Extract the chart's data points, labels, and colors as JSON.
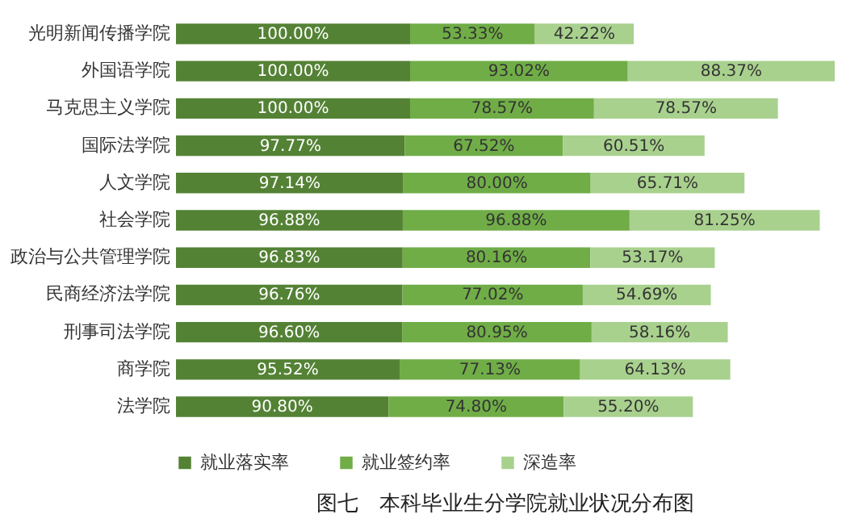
{
  "chart_data": {
    "type": "bar",
    "orientation": "horizontal",
    "stacked": true,
    "title": "图七　本科毕业生分学院就业状况分布图",
    "legend": "bottom",
    "tick_labels": "y",
    "categories": [
      "光明新闻传播学院",
      "外国语学院",
      "马克思主义学院",
      "国际法学院",
      "人文学院",
      "社会学院",
      "政治与公共管理学院",
      "民商经济法学院",
      "刑事司法学院",
      "商学院",
      "法学院"
    ],
    "series": [
      {
        "name": "就业落实率",
        "color": "#548235",
        "values": [
          100.0,
          100.0,
          100.0,
          97.77,
          97.14,
          96.88,
          96.83,
          96.76,
          96.6,
          95.52,
          90.8
        ],
        "value_labels": [
          "100.00%",
          "100.00%",
          "100.00%",
          "97.77%",
          "97.14%",
          "96.88%",
          "96.83%",
          "96.76%",
          "96.60%",
          "95.52%",
          "90.80%"
        ]
      },
      {
        "name": "就业签约率",
        "color": "#70ad47",
        "values": [
          53.33,
          93.02,
          78.57,
          67.52,
          80.0,
          96.88,
          80.16,
          77.02,
          80.95,
          77.13,
          74.8
        ],
        "value_labels": [
          "53.33%",
          "93.02%",
          "78.57%",
          "67.52%",
          "80.00%",
          "96.88%",
          "80.16%",
          "77.02%",
          "80.95%",
          "77.13%",
          "74.80%"
        ]
      },
      {
        "name": "深造率",
        "color": "#a9d18e",
        "values": [
          42.22,
          88.37,
          78.57,
          60.51,
          65.71,
          81.25,
          53.17,
          54.69,
          58.16,
          64.13,
          55.2
        ],
        "value_labels": [
          "42.22%",
          "88.37%",
          "78.57%",
          "60.51%",
          "65.71%",
          "81.25%",
          "53.17%",
          "54.69%",
          "58.16%",
          "64.13%",
          "55.20%"
        ]
      }
    ]
  }
}
